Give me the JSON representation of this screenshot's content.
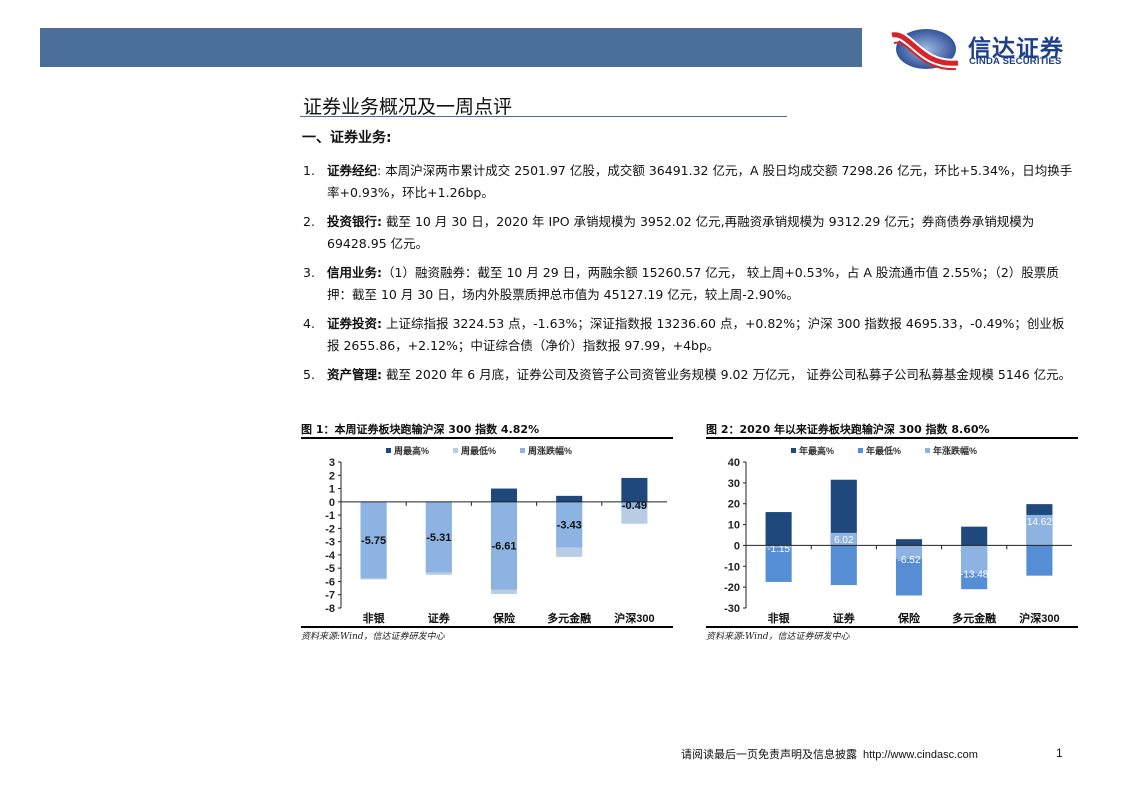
{
  "header": {
    "band_color": "#4a7099",
    "logo": {
      "name_cn": "信达证券",
      "name_en": "CINDA SECURITIES",
      "brand_color": "#1d3f8c",
      "accent_color": "#d8232a"
    }
  },
  "page": {
    "title": "证券业务概况及一周点评",
    "section_heading": "一、证券业务:",
    "items": [
      {
        "num": "1.",
        "lead": "证券经纪",
        "sep": ":",
        "text": "本周沪深两市累计成交 2501.97 亿股，成交额 36491.32 亿元，A 股日均成交额 7298.26 亿元，环比+5.34%，日均换手率+0.93%，环比+1.26bp。"
      },
      {
        "num": "2.",
        "lead": "投资银行",
        "sep": ":",
        "text": "截至 10 月 30 日，2020 年 IPO 承销规模为 3952.02 亿元,再融资承销规模为 9312.29 亿元；券商债券承销规模为 69428.95 亿元。"
      },
      {
        "num": "3.",
        "lead": "信用业务",
        "sep": ":",
        "text": "（1）融资融券：截至 10 月 29 日，两融余额 15260.57 亿元， 较上周+0.53%，占 A 股流通市值 2.55%；（2）股票质押：截至 10 月 30 日，场内外股票质押总市值为 45127.19 亿元，较上周-2.90%。"
      },
      {
        "num": "4.",
        "lead": "证券投资",
        "sep": ":",
        "text": "上证综指报 3224.53 点，-1.63%；深证指数报 13236.60 点，+0.82%；沪深 300 指数报 4695.33，-0.49%；创业板报 2655.86，+2.12%；中证综合债（净价）指数报 97.99，+4bp。"
      },
      {
        "num": "5.",
        "lead": "资产管理",
        "sep": ":",
        "text": "截至 2020 年 6 月底，证券公司及资管子公司资管业务规模 9.02 万亿元， 证券公司私募子公司私募基金规模 5146 亿元。"
      }
    ]
  },
  "figures": [
    {
      "title": "图 1：本周证券板块跑输沪深 300 指数 4.82%",
      "source": "资料来源:Wind，信达证券研发中心"
    },
    {
      "title": "图 2：2020 年以来证券板块跑输沪深 300 指数 8.60%",
      "source": "资料来源:Wind，信达证券研发中心"
    }
  ],
  "chart_data": [
    {
      "type": "bar",
      "title": "图 1：本周证券板块跑输沪深 300 指数 4.82%",
      "categories": [
        "非银",
        "证券",
        "保险",
        "多元金融",
        "沪深300"
      ],
      "series": [
        {
          "name": "周最高%",
          "color": "#1f497d",
          "values": [
            0,
            0,
            1.0,
            0.45,
            1.8
          ]
        },
        {
          "name": "周最低%",
          "color": "#b8cce4",
          "values": [
            -5.85,
            -5.5,
            -6.95,
            -4.15,
            -1.65
          ]
        },
        {
          "name": "周涨跌幅%",
          "color": "#8db3e2",
          "values": [
            -5.75,
            -5.31,
            -6.61,
            -3.43,
            -0.49
          ]
        }
      ],
      "data_labels": [
        "-5.75",
        "-5.31",
        "-6.61",
        "-3.43",
        "-0.49"
      ],
      "yticks": [
        3,
        2,
        1,
        0,
        -1,
        -2,
        -3,
        -4,
        -5,
        -6,
        -7,
        -8
      ],
      "ylim": [
        -8,
        3
      ],
      "xlabel": "",
      "ylabel": "",
      "legend_position": "top",
      "grid": false
    },
    {
      "type": "bar",
      "title": "图 2：2020 年以来证券板块跑输沪深 300 指数 8.60%",
      "categories": [
        "非银",
        "证券",
        "保险",
        "多元金融",
        "沪深300"
      ],
      "series": [
        {
          "name": "年最高%",
          "color": "#1f497d",
          "values": [
            16,
            31.5,
            3,
            9,
            19.8
          ]
        },
        {
          "name": "年最低%",
          "color": "#558ed5",
          "values": [
            -17.5,
            -19,
            -24,
            -21,
            -14.5
          ]
        },
        {
          "name": "年涨跌幅%",
          "color": "#8db3e2",
          "values": [
            -1.15,
            6.02,
            -6.52,
            -13.48,
            14.62
          ]
        }
      ],
      "data_labels": [
        "-1.15",
        "6.02",
        "-6.52",
        "-13.48",
        "14.62"
      ],
      "yticks": [
        40,
        30,
        20,
        10,
        0,
        -10,
        -20,
        -30
      ],
      "ylim": [
        -30,
        40
      ],
      "xlabel": "",
      "ylabel": "",
      "legend_position": "top",
      "grid": false
    }
  ],
  "footer": {
    "disclaimer": "请阅读最后一页免责声明及信息披露",
    "url": "http://www.cindasc.com",
    "page_number": "1"
  }
}
